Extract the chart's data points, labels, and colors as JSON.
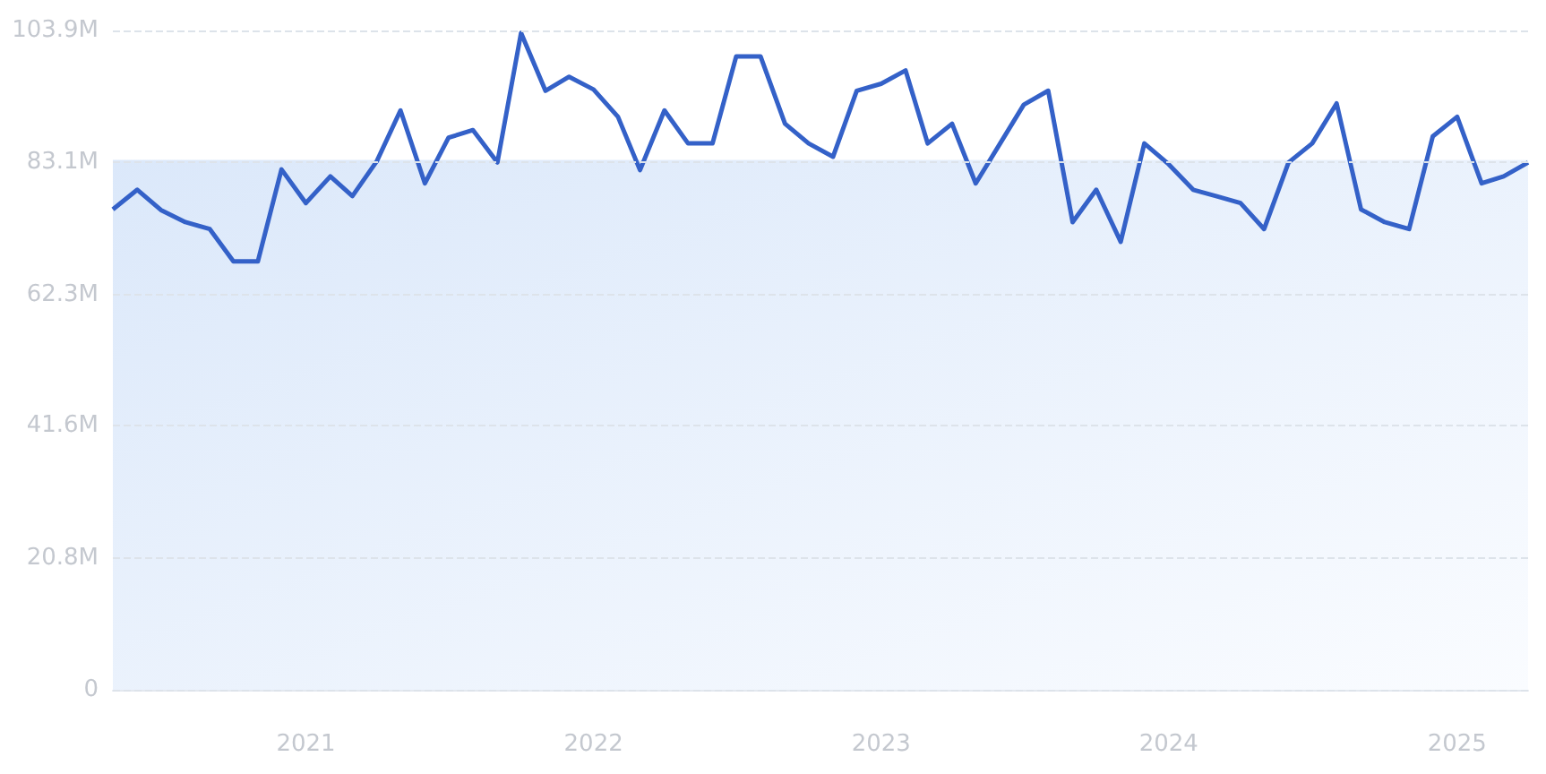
{
  "chart_data": {
    "type": "line",
    "x": [
      "2020-05",
      "2020-06",
      "2020-07",
      "2020-08",
      "2020-09",
      "2020-10",
      "2020-11",
      "2020-12",
      "2021-01",
      "2021-02",
      "2021-03",
      "2021-04",
      "2021-05",
      "2021-06",
      "2021-07",
      "2021-08",
      "2021-09",
      "2021-10",
      "2021-11",
      "2021-12",
      "2022-01",
      "2022-02",
      "2022-03",
      "2022-04",
      "2022-05",
      "2022-06",
      "2022-07",
      "2022-08",
      "2022-09",
      "2022-10",
      "2022-11",
      "2022-12",
      "2023-01",
      "2023-02",
      "2023-03",
      "2023-04",
      "2023-05",
      "2023-06",
      "2023-07",
      "2023-08",
      "2023-09",
      "2023-10",
      "2023-11",
      "2023-12",
      "2024-01",
      "2024-02",
      "2024-03",
      "2024-04",
      "2024-05",
      "2024-06",
      "2024-07",
      "2024-08",
      "2024-09",
      "2024-10",
      "2024-11",
      "2024-12",
      "2025-01",
      "2025-02",
      "2025-03",
      "2025-04"
    ],
    "series": [
      {
        "color": "#3461c8",
        "values": [
          75.7,
          78.8,
          75.6,
          73.7,
          72.6,
          67.5,
          67.5,
          82.0,
          76.7,
          80.9,
          77.8,
          83.3,
          91.3,
          79.8,
          87.0,
          88.2,
          83.1,
          103.5,
          94.4,
          96.6,
          94.6,
          90.3,
          81.9,
          91.3,
          86.1,
          86.1,
          99.8,
          99.8,
          89.2,
          86.1,
          84.0,
          94.4,
          95.5,
          97.6,
          86.1,
          89.2,
          79.8,
          86.1,
          92.2,
          94.4,
          73.7,
          78.8,
          70.6,
          86.1,
          82.8,
          78.8,
          77.8,
          76.7,
          72.6,
          83.1,
          86.1,
          92.4,
          75.7,
          73.7,
          72.6,
          87.2,
          90.3,
          79.8,
          80.9,
          83.1
        ]
      }
    ],
    "xlim": [
      "2020-05",
      "2025-04"
    ],
    "xticks": [
      {
        "value": "2021-01",
        "label": "2021"
      },
      {
        "value": "2022-01",
        "label": "2022"
      },
      {
        "value": "2023-01",
        "label": "2023"
      },
      {
        "value": "2024-01",
        "label": "2024"
      },
      {
        "value": "2025-01",
        "label": "2025"
      }
    ],
    "ylim": [
      0,
      103.9
    ],
    "yticks": [
      0,
      {
        "value": 20.8,
        "label": "20.8M"
      },
      {
        "value": 41.6,
        "label": "41.6M"
      },
      {
        "value": 62.3,
        "label": "62.3M"
      },
      {
        "value": 83.1,
        "label": "83.1M"
      },
      {
        "value": 103.9,
        "label": "103.9M"
      }
    ],
    "bands": [
      {
        "axis": "y",
        "from": 0,
        "to": 83.5,
        "color": "#dbe8fa"
      }
    ],
    "grid": "y",
    "marker": "none",
    "line_style": "solid"
  }
}
